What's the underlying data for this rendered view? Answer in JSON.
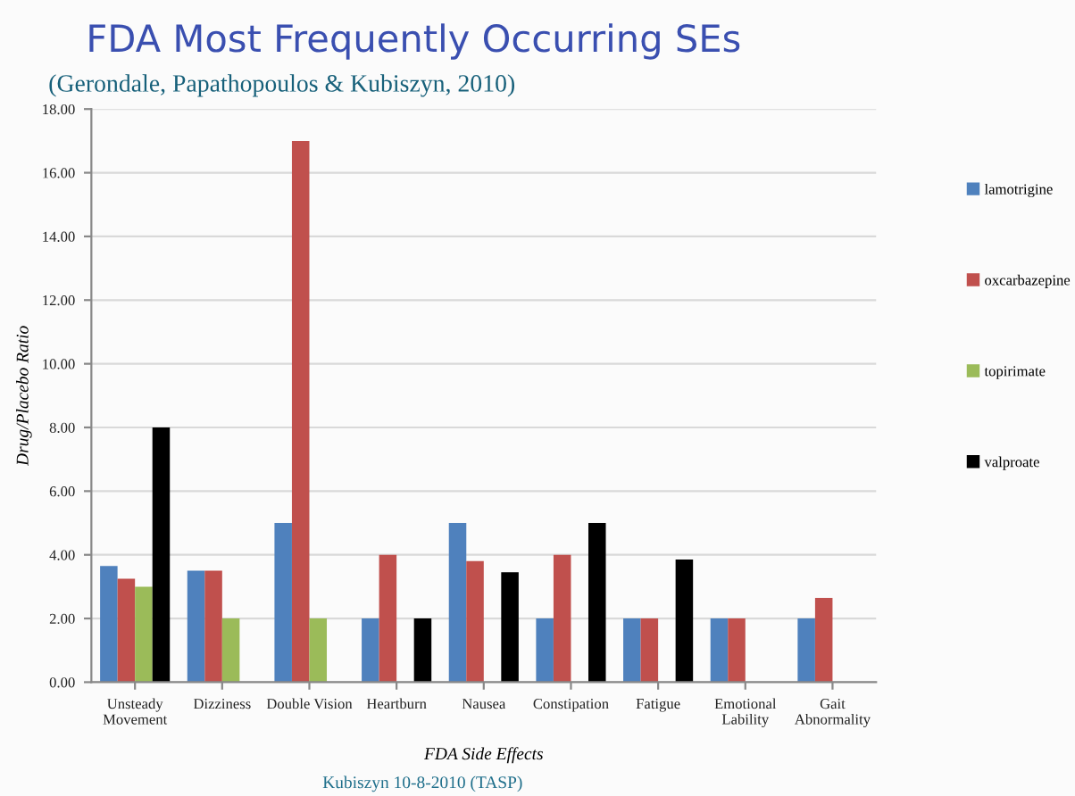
{
  "chart_data": {
    "type": "bar",
    "title": "FDA Most Frequently Occurring SEs",
    "subtitle": "(Gerondale, Papathopoulos & Kubiszyn, 2010)",
    "xlabel": "FDA Side Effects",
    "ylabel": "Drug/Placebo Ratio",
    "annotations": [
      "Kubiszyn 10-8-2010 (TASP)"
    ],
    "categories": [
      "Unsteady\nMovement",
      "Dizziness",
      "Double Vision",
      "Heartburn",
      "Nausea",
      "Constipation",
      "Fatigue",
      "Emotional\nLability",
      "Gait\nAbnormality"
    ],
    "series": [
      {
        "name": "lamotrigine",
        "color": "#4f81bd",
        "values": [
          3.65,
          3.5,
          5.0,
          2.0,
          5.0,
          2.0,
          2.0,
          2.0,
          2.0
        ]
      },
      {
        "name": "oxcarbazepine",
        "color": "#c0504d",
        "values": [
          3.25,
          3.5,
          17.0,
          4.0,
          3.8,
          4.0,
          2.0,
          2.0,
          2.65
        ]
      },
      {
        "name": "topirimate",
        "color": "#9bbb59",
        "values": [
          3.0,
          2.0,
          2.0,
          null,
          null,
          null,
          null,
          null,
          null
        ]
      },
      {
        "name": "valproate",
        "color": "#000000",
        "values": [
          8.0,
          null,
          null,
          2.0,
          3.45,
          5.0,
          3.85,
          null,
          null
        ]
      }
    ],
    "ylim": [
      0,
      18
    ],
    "yticks": [
      {
        "value": 0,
        "label": "0.00"
      },
      {
        "value": 2,
        "label": "2.00"
      },
      {
        "value": 4,
        "label": "4.00"
      },
      {
        "value": 6,
        "label": "6.00"
      },
      {
        "value": 8,
        "label": "8.00"
      },
      {
        "value": 10,
        "label": "10.00"
      },
      {
        "value": 12,
        "label": "12.00"
      },
      {
        "value": 14,
        "label": "14.00"
      },
      {
        "value": 16,
        "label": "16.00"
      },
      {
        "value": 18,
        "label": "18.00"
      }
    ],
    "grid": "y",
    "legend": "right"
  }
}
